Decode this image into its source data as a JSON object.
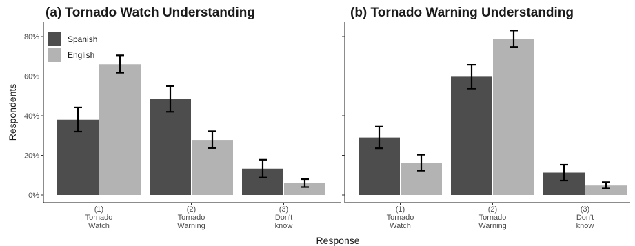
{
  "chart_data": [
    {
      "type": "bar",
      "title": "(a) Tornado Watch Understanding",
      "ylabel": "Respondents",
      "xlabel": "Response",
      "ylim": [
        0,
        0.87
      ],
      "yticks": [
        0,
        0.2,
        0.4,
        0.6,
        0.8
      ],
      "ytick_labels": [
        "0%",
        "20%",
        "40%",
        "60%",
        "80%"
      ],
      "categories": [
        [
          "(1)",
          "Tornado",
          "Watch"
        ],
        [
          "(2)",
          "Tornado",
          "Warning"
        ],
        [
          "(3)",
          "Don't",
          "know"
        ]
      ],
      "series": [
        {
          "name": "Spanish",
          "color": "#4d4d4d",
          "values": [
            0.38,
            0.485,
            0.133
          ],
          "err_low": [
            0.32,
            0.42,
            0.088
          ],
          "err_high": [
            0.442,
            0.55,
            0.178
          ]
        },
        {
          "name": "English",
          "color": "#b3b3b3",
          "values": [
            0.66,
            0.278,
            0.06
          ],
          "err_low": [
            0.617,
            0.237,
            0.04
          ],
          "err_high": [
            0.705,
            0.322,
            0.08
          ]
        }
      ],
      "legend": {
        "position": "top-left",
        "entries": [
          "Spanish",
          "English"
        ]
      },
      "grid": false
    },
    {
      "type": "bar",
      "title": "(b) Tornado Warning Understanding",
      "ylim": [
        0,
        0.87
      ],
      "yticks": [
        0,
        0.2,
        0.4,
        0.6,
        0.8
      ],
      "ytick_labels": [
        "",
        "",
        "",
        "",
        ""
      ],
      "categories": [
        [
          "(1)",
          "Tornado",
          "Watch"
        ],
        [
          "(2)",
          "Tornado",
          "Warning"
        ],
        [
          "(3)",
          "Don't",
          "know"
        ]
      ],
      "series": [
        {
          "name": "Spanish",
          "color": "#4d4d4d",
          "values": [
            0.29,
            0.597,
            0.113
          ],
          "err_low": [
            0.236,
            0.537,
            0.073
          ],
          "err_high": [
            0.345,
            0.657,
            0.153
          ]
        },
        {
          "name": "English",
          "color": "#b3b3b3",
          "values": [
            0.163,
            0.788,
            0.048
          ],
          "err_low": [
            0.123,
            0.747,
            0.033
          ],
          "err_high": [
            0.203,
            0.83,
            0.065
          ]
        }
      ],
      "grid": false
    }
  ]
}
